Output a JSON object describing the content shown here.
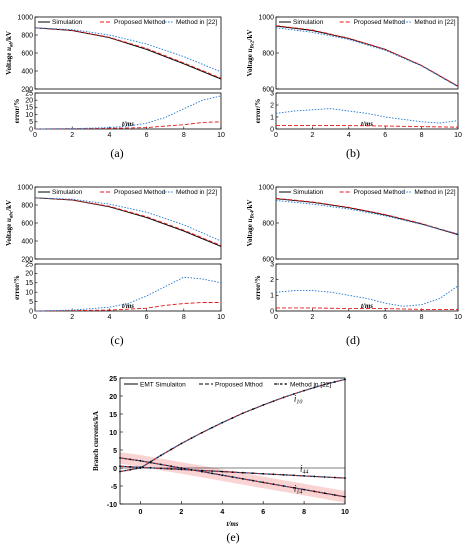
{
  "chart_data": [
    {
      "id": "a",
      "type": "line",
      "caption": "(a)",
      "legend": [
        "Simulation",
        "Proposed Method",
        "Method in [22]"
      ],
      "top": {
        "ylabel": "Voltage u_ab/kV",
        "ylabel_main": "Voltage ",
        "ylabel_sym": "u",
        "ylabel_sub": "ab",
        "ylabel_unit": "/kV",
        "ylim": [
          200,
          1000
        ],
        "yticks": [
          "200",
          "400",
          "600",
          "800",
          "1000"
        ],
        "x": [
          0,
          2,
          4,
          6,
          8,
          10
        ],
        "series": [
          {
            "name": "Simulation",
            "values": [
              880,
              850,
              770,
              640,
              480,
              310
            ]
          },
          {
            "name": "Proposed Method",
            "values": [
              880,
              852,
              775,
              650,
              490,
              320
            ]
          },
          {
            "name": "Method in [22]",
            "values": [
              880,
              860,
              800,
              700,
              560,
              390
            ]
          }
        ]
      },
      "bottom": {
        "ylabel": "error/%",
        "ylim": [
          0,
          25
        ],
        "yticks": [
          "0",
          "5",
          "10",
          "15",
          "20",
          "25"
        ],
        "xlabel": "t/ms",
        "xticks": [
          "0",
          "2",
          "4",
          "6",
          "8",
          "10"
        ],
        "series": [
          {
            "name": "Proposed Method",
            "x": [
              0,
              2,
              4,
              6,
              7,
              8,
              9,
              10
            ],
            "values": [
              0,
              0.2,
              0.5,
              1,
              2,
              3,
              4.5,
              5
            ]
          },
          {
            "name": "Method in [22]",
            "x": [
              0,
              2,
              4,
              5,
              6,
              7,
              8,
              9,
              10
            ],
            "values": [
              0,
              0.3,
              1,
              2,
              4,
              8,
              14,
              20,
              23
            ]
          }
        ]
      }
    },
    {
      "id": "b",
      "type": "line",
      "caption": "(b)",
      "legend": [
        "Simulation",
        "Proposed Method",
        "Method in [22]"
      ],
      "top": {
        "ylabel": "Voltage u_Bc2/kV",
        "ylabel_main": "Voltage ",
        "ylabel_sym": "u",
        "ylabel_sub": "Bc2",
        "ylabel_unit": "/kV",
        "ylim": [
          600,
          1000
        ],
        "yticks": [
          "600",
          "800",
          "1000"
        ],
        "x": [
          0,
          2,
          4,
          6,
          8,
          10
        ],
        "series": [
          {
            "name": "Simulation",
            "values": [
              950,
              925,
              880,
              820,
              730,
              615
            ]
          },
          {
            "name": "Proposed Method",
            "values": [
              952,
              928,
              882,
              821,
              731,
              616
            ]
          },
          {
            "name": "Method in [22]",
            "values": [
              940,
              915,
              875,
              815,
              728,
              612
            ]
          }
        ]
      },
      "bottom": {
        "ylabel": "error/%",
        "ylim": [
          0,
          3
        ],
        "yticks": [
          "0",
          "1",
          "2",
          "3"
        ],
        "xlabel": "t/ms",
        "xticks": [
          "0",
          "2",
          "4",
          "6",
          "8",
          "10"
        ],
        "series": [
          {
            "name": "Proposed Method",
            "x": [
              0,
              2,
              4,
              6,
              8,
              10
            ],
            "values": [
              0.3,
              0.3,
              0.28,
              0.25,
              0.2,
              0.15
            ]
          },
          {
            "name": "Method in [22]",
            "x": [
              0,
              1,
              2,
              3,
              4,
              5,
              6,
              7,
              8,
              9,
              10
            ],
            "values": [
              1.3,
              1.5,
              1.6,
              1.7,
              1.5,
              1.3,
              1.0,
              0.8,
              0.6,
              0.5,
              0.7
            ]
          }
        ]
      }
    },
    {
      "id": "c",
      "type": "line",
      "caption": "(c)",
      "legend": [
        "Simulation",
        "Proposed Method",
        "Method in [22]"
      ],
      "top": {
        "ylabel": "Voltage u_abc/kV",
        "ylabel_main": "Voltage ",
        "ylabel_sym": "u",
        "ylabel_sub": "abc",
        "ylabel_unit": "/kV",
        "ylim": [
          200,
          1000
        ],
        "yticks": [
          "200",
          "400",
          "600",
          "800",
          "1000"
        ],
        "x": [
          0,
          2,
          4,
          6,
          8,
          10
        ],
        "series": [
          {
            "name": "Simulation",
            "values": [
              880,
              855,
              780,
              660,
              510,
              340
            ]
          },
          {
            "name": "Proposed Method",
            "values": [
              880,
              857,
              785,
              670,
              520,
              350
            ]
          },
          {
            "name": "Method in [22]",
            "values": [
              880,
              865,
              810,
              720,
              580,
              400
            ]
          }
        ]
      },
      "bottom": {
        "ylabel": "error/%",
        "ylim": [
          0,
          25
        ],
        "yticks": [
          "0",
          "5",
          "10",
          "15",
          "20",
          "25"
        ],
        "xlabel": "t/ms",
        "xticks": [
          "0",
          "2",
          "4",
          "6",
          "8",
          "10"
        ],
        "series": [
          {
            "name": "Proposed Method",
            "x": [
              0,
              2,
              4,
              6,
              7,
              8,
              9,
              10
            ],
            "values": [
              0,
              0.2,
              0.5,
              1.5,
              3,
              4,
              4.5,
              4.5
            ]
          },
          {
            "name": "Method in [22]",
            "x": [
              0,
              2,
              4,
              5,
              6,
              7,
              8,
              9,
              10
            ],
            "values": [
              0,
              0.5,
              2,
              4,
              8,
              13,
              18,
              17,
              15
            ]
          }
        ]
      }
    },
    {
      "id": "d",
      "type": "line",
      "caption": "(d)",
      "legend": [
        "Simulation",
        "Proposed Method",
        "Method in [22]"
      ],
      "top": {
        "ylabel": "Voltage u_Bc4/kV",
        "ylabel_main": "Voltage ",
        "ylabel_sym": "u",
        "ylabel_sub": "Bc4",
        "ylabel_unit": "/kV",
        "ylim": [
          600,
          1000
        ],
        "yticks": [
          "600",
          "800",
          "1000"
        ],
        "x": [
          0,
          2,
          4,
          6,
          8,
          10
        ],
        "series": [
          {
            "name": "Simulation",
            "values": [
              935,
              915,
              885,
              845,
              795,
              735
            ]
          },
          {
            "name": "Proposed Method",
            "values": [
              937,
              917,
              887,
              847,
              797,
              737
            ]
          },
          {
            "name": "Method in [22]",
            "values": [
              925,
              905,
              878,
              840,
              792,
              740
            ]
          }
        ]
      },
      "bottom": {
        "ylabel": "error/%",
        "ylim": [
          0,
          3
        ],
        "yticks": [
          "0",
          "1",
          "2",
          "3"
        ],
        "xlabel": "t/ms",
        "xticks": [
          "0",
          "2",
          "4",
          "6",
          "8",
          "10"
        ],
        "series": [
          {
            "name": "Proposed Method",
            "x": [
              0,
              2,
              4,
              6,
              8,
              10
            ],
            "values": [
              0.2,
              0.2,
              0.15,
              0.15,
              0.1,
              0.1
            ]
          },
          {
            "name": "Method in [22]",
            "x": [
              0,
              1,
              2,
              3,
              4,
              5,
              6,
              7,
              8,
              9,
              10
            ],
            "values": [
              1.2,
              1.3,
              1.3,
              1.2,
              1.0,
              0.8,
              0.5,
              0.3,
              0.4,
              0.8,
              1.6
            ]
          }
        ]
      }
    },
    {
      "id": "e",
      "type": "line",
      "caption": "(e)",
      "legend": [
        "EMT Simulaiton",
        "Proposed Mthod",
        "Method in [22]"
      ],
      "ylabel": "Branch currents/kA",
      "xlabel": "t/ms",
      "ylim": [
        -10,
        25
      ],
      "xlim": [
        -1,
        10
      ],
      "yticks": [
        "-10",
        "-5",
        "0",
        "5",
        "10",
        "15",
        "20",
        "25"
      ],
      "xticks": [
        "0",
        "2",
        "4",
        "6",
        "8",
        "10"
      ],
      "annotations": [
        {
          "text": "i",
          "sub": "10",
          "x": 7.5,
          "y": 18.5
        },
        {
          "text": "i",
          "sub": "44",
          "x": 7.8,
          "y": -1
        },
        {
          "text": "i",
          "sub": "14",
          "x": 7.5,
          "y": -6.5
        }
      ],
      "x": [
        -1,
        0,
        1,
        2,
        3,
        4,
        5,
        6,
        7,
        8,
        9,
        10
      ],
      "series": [
        {
          "name": "EMT Simulaiton",
          "group": "i10",
          "values": [
            -1,
            0,
            3.5,
            6.8,
            9.8,
            12.6,
            15.2,
            17.5,
            19.6,
            21.5,
            23.2,
            24.6
          ]
        },
        {
          "name": "Proposed Mthod",
          "group": "i10",
          "values": [
            -1,
            0,
            3.5,
            6.8,
            9.8,
            12.6,
            15.2,
            17.5,
            19.6,
            21.5,
            23.2,
            24.6
          ]
        },
        {
          "name": "Method in [22]",
          "group": "i10",
          "values": [
            -1,
            0,
            3.5,
            6.8,
            9.8,
            12.6,
            15.2,
            17.5,
            19.6,
            21.5,
            23.2,
            24.6
          ]
        },
        {
          "name": "EMT Simulaiton",
          "group": "i44",
          "values": [
            0.5,
            0.2,
            -0.1,
            -0.4,
            -0.7,
            -1.0,
            -1.3,
            -1.6,
            -1.9,
            -2.2,
            -2.5,
            -2.8
          ]
        },
        {
          "name": "Proposed Mthod",
          "group": "i44",
          "values": [
            0.5,
            0.2,
            -0.1,
            -0.4,
            -0.7,
            -1.0,
            -1.3,
            -1.6,
            -1.9,
            -2.2,
            -2.5,
            -2.8
          ]
        },
        {
          "name": "Method in [22]",
          "group": "i44",
          "values": [
            0.5,
            0.2,
            -0.1,
            -0.4,
            -0.7,
            -1.0,
            -1.3,
            -1.6,
            -1.9,
            -2.2,
            -2.5,
            -2.8
          ]
        },
        {
          "name": "EMT Simulaiton",
          "group": "i14",
          "values": [
            2.8,
            2,
            1,
            0,
            -1,
            -2,
            -3,
            -4,
            -5,
            -6,
            -7,
            -8
          ]
        },
        {
          "name": "Proposed Mthod",
          "group": "i14",
          "values": [
            2.8,
            2,
            1,
            0,
            -1,
            -2,
            -3,
            -4,
            -5,
            -6,
            -7,
            -8
          ]
        },
        {
          "name": "Method in [22]",
          "group": "i14",
          "values": [
            2.8,
            2,
            1,
            0,
            -1,
            -2,
            -3,
            -4,
            -5,
            -6,
            -7,
            -8
          ]
        }
      ]
    }
  ],
  "colors": {
    "simulation": "#000000",
    "proposed": "#e41a1c",
    "method22": "#1f78d1",
    "shade": "#f6b6b6"
  }
}
